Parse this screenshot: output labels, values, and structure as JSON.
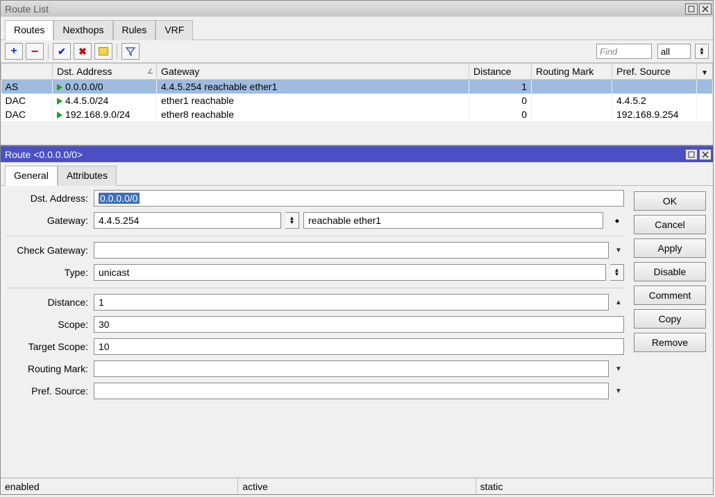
{
  "routelist": {
    "title": "Route List",
    "tabs": [
      "Routes",
      "Nexthops",
      "Rules",
      "VRF"
    ],
    "active_tab": 0,
    "find_placeholder": "Find",
    "filter_value": "all",
    "columns": {
      "flags": "",
      "dst": "Dst. Address",
      "gateway": "Gateway",
      "distance": "Distance",
      "rmark": "Routing Mark",
      "psrc": "Pref. Source"
    },
    "col_widths": {
      "flags": 74,
      "dst": 150,
      "gateway": 450,
      "distance": 90,
      "rmark": 116,
      "psrc": 120,
      "menu": 20
    },
    "rows": [
      {
        "flags": "AS",
        "dst": "0.0.0.0/0",
        "gateway": "4.4.5.254 reachable ether1",
        "distance": "1",
        "rmark": "",
        "psrc": "",
        "selected": true
      },
      {
        "flags": "DAC",
        "dst": "4.4.5.0/24",
        "gateway": "ether1 reachable",
        "distance": "0",
        "rmark": "",
        "psrc": "4.4.5.2",
        "selected": false
      },
      {
        "flags": "DAC",
        "dst": "192.168.9.0/24",
        "gateway": "ether8 reachable",
        "distance": "0",
        "rmark": "",
        "psrc": "192.168.9.254",
        "selected": false
      }
    ]
  },
  "detail": {
    "title": "Route <0.0.0.0/0>",
    "tabs": [
      "General",
      "Attributes"
    ],
    "active_tab": 0,
    "buttons": [
      "OK",
      "Cancel",
      "Apply",
      "Disable",
      "Comment",
      "Copy",
      "Remove"
    ],
    "labels": {
      "dst": "Dst. Address:",
      "gateway": "Gateway:",
      "checkgw": "Check Gateway:",
      "type": "Type:",
      "distance": "Distance:",
      "scope": "Scope:",
      "tscope": "Target Scope:",
      "rmark": "Routing Mark:",
      "psrc": "Pref. Source:"
    },
    "values": {
      "dst": "0.0.0.0/0",
      "gateway": "4.4.5.254",
      "reach": "reachable ether1",
      "checkgw": "",
      "type": "unicast",
      "distance": "1",
      "scope": "30",
      "tscope": "10",
      "rmark": "",
      "psrc": ""
    },
    "status": [
      "enabled",
      "active",
      "static"
    ]
  },
  "colors": {
    "selected_row": "#9fbce0",
    "titlebar_active": "#4a4fc4",
    "run_tri": "#19a319"
  }
}
